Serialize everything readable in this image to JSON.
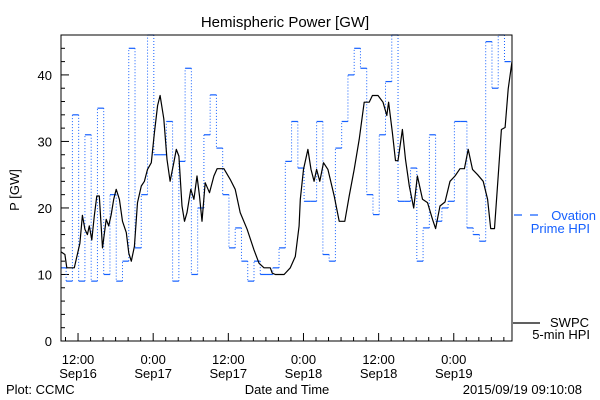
{
  "chart_data": {
    "type": "line",
    "title": "Hemispheric Power [GW]",
    "xlabel": "Date and Time",
    "ylabel": "P [GW]",
    "x_units": "hours since 2015-09-16 00:00 UT",
    "xlim": [
      9.28,
      81.3
    ],
    "ylim": [
      0,
      46
    ],
    "yticks": [
      0,
      10,
      20,
      30,
      40
    ],
    "xticks": [
      {
        "x": 12,
        "time": "12:00",
        "date": "Sep16"
      },
      {
        "x": 24,
        "time": "0:00",
        "date": "Sep17"
      },
      {
        "x": 36,
        "time": "12:00",
        "date": "Sep17"
      },
      {
        "x": 48,
        "time": "0:00",
        "date": "Sep18"
      },
      {
        "x": 60,
        "time": "12:00",
        "date": "Sep18"
      },
      {
        "x": 72,
        "time": "0:00",
        "date": "Sep19"
      }
    ],
    "grid": false,
    "series": [
      {
        "name": "Ovation Prime HPI",
        "legend": [
          "Ovation",
          "Prime HPI"
        ],
        "style": "step-dotted",
        "color": "#1560ff",
        "step_start": 9.1,
        "step_hours": 1,
        "values": [
          11,
          9,
          34,
          9,
          31,
          9,
          35,
          10,
          22,
          9,
          12,
          44,
          14,
          22,
          46,
          28,
          28,
          33,
          9,
          27,
          41,
          10,
          20,
          31,
          37,
          29,
          22,
          14,
          17,
          12,
          9,
          12,
          10,
          10,
          11,
          14,
          27,
          33,
          26,
          21,
          21,
          33,
          13,
          12,
          29,
          33,
          40,
          44,
          41,
          22,
          19,
          31,
          39,
          46,
          21,
          21,
          26,
          12,
          17,
          31,
          18,
          20,
          21,
          33,
          33,
          17,
          16,
          15,
          45,
          38,
          46,
          42
        ]
      },
      {
        "name": "SWPC 5-min HPI",
        "legend": [
          "SWPC",
          "5-min HPI"
        ],
        "style": "solid",
        "color": "#000000",
        "x": [
          9.3,
          9.9,
          10.2,
          11.4,
          12.3,
          12.7,
          13.1,
          13.5,
          13.8,
          14.2,
          14.6,
          15.0,
          15.4,
          15.9,
          16.5,
          16.9,
          17.3,
          17.7,
          18.1,
          18.6,
          19.1,
          19.7,
          20.1,
          20.5,
          21.0,
          21.5,
          22.1,
          22.6,
          23.1,
          23.7,
          24.2,
          24.7,
          25.1,
          25.7,
          26.2,
          26.7,
          27.3,
          27.7,
          28.1,
          28.6,
          29.0,
          29.4,
          30.0,
          30.5,
          31.0,
          31.4,
          31.8,
          32.3,
          33.0,
          33.7,
          34.2,
          35.3,
          36.3,
          37.1,
          37.9,
          39.0,
          40.1,
          40.9,
          41.7,
          42.7,
          43.0,
          43.5,
          44.9,
          45.9,
          46.7,
          47.3,
          47.5,
          48.0,
          48.7,
          49.2,
          49.7,
          50.1,
          50.6,
          51.2,
          51.9,
          52.9,
          53.7,
          54.6,
          55.3,
          56.1,
          56.9,
          57.7,
          58.5,
          59.0,
          59.9,
          60.7,
          61.3,
          61.6,
          62.2,
          62.7,
          63.1,
          63.8,
          64.3,
          64.9,
          65.6,
          66.2,
          67.0,
          67.8,
          68.6,
          69.1,
          69.8,
          70.6,
          71.4,
          72.2,
          73.0,
          73.7,
          74.3,
          75.0,
          75.8,
          76.7,
          77.4,
          77.9,
          78.5,
          79.1,
          79.6,
          80.2,
          80.7,
          81.3
        ],
        "values": [
          13.4,
          13,
          11,
          11,
          14.7,
          18.9,
          16.8,
          16,
          17.3,
          15.2,
          18.8,
          21.8,
          21.8,
          14,
          18.3,
          17.3,
          19,
          21.3,
          22.8,
          21.3,
          18,
          16.3,
          13.2,
          12,
          14.2,
          20.8,
          23.3,
          24,
          25.8,
          26.8,
          31.3,
          35.4,
          36.9,
          33.4,
          27.3,
          24,
          26.8,
          28.8,
          27.8,
          20.3,
          18,
          19.3,
          22.8,
          21.3,
          24.8,
          21.8,
          18,
          23.8,
          22.3,
          24.8,
          25.9,
          25.9,
          24.3,
          22.8,
          19.3,
          16.8,
          13.7,
          11.7,
          11,
          11,
          10.2,
          10,
          10,
          11,
          12.7,
          17.3,
          21.3,
          25.8,
          28.8,
          25.8,
          24,
          25.8,
          24,
          26.8,
          25.8,
          21.8,
          18,
          18,
          21.8,
          25.8,
          30.3,
          35.9,
          35.9,
          36.9,
          36.9,
          35.9,
          33.9,
          35.9,
          31.3,
          27.1,
          27.1,
          31.8,
          27.3,
          23.3,
          20,
          24.8,
          21.3,
          20.8,
          18.3,
          16.9,
          20.3,
          20.9,
          24,
          24.8,
          25.9,
          25.9,
          28.8,
          25.8,
          25,
          24,
          21.3,
          16.9,
          16.9,
          24.8,
          31.8,
          32.1,
          37.9,
          42
        ]
      }
    ]
  },
  "footer": {
    "credit": "Plot: CCMC",
    "timestamp": "2015/09/19 09:10:08"
  }
}
